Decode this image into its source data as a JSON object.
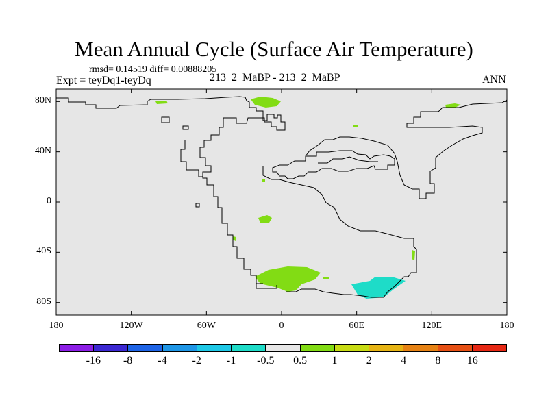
{
  "chart_data": {
    "type": "map",
    "title": "Mean Annual Cycle (Surface Air Temperature)",
    "stats_line": "rmsd= 0.14519 diff= 0.00888205",
    "expt_line": "Expt = teyDq1-teyDq",
    "center_label": "213_2_MaBP - 213_2_MaBP",
    "season_label": "ANN",
    "x_ticks": [
      "180",
      "120W",
      "60W",
      "0",
      "60E",
      "120E",
      "180"
    ],
    "x_tick_values": [
      -180,
      -120,
      -60,
      0,
      60,
      120,
      180
    ],
    "y_ticks": [
      "80N",
      "40N",
      "0",
      "40S",
      "80S"
    ],
    "y_tick_values": [
      80,
      40,
      0,
      -40,
      -80
    ],
    "xlim": [
      -180,
      180
    ],
    "ylim": [
      -90,
      90
    ],
    "colorbar": {
      "labels": [
        "-16",
        "-8",
        "-4",
        "-2",
        "-1",
        "-0.5",
        "0.5",
        "1",
        "2",
        "4",
        "8",
        "16"
      ],
      "colors": [
        "#8c1ee6",
        "#3c28d2",
        "#1e64e6",
        "#1e96e6",
        "#1ec8e6",
        "#1edcc8",
        "#e6e6e6",
        "#82dc14",
        "#c8dc14",
        "#e6b414",
        "#e68214",
        "#e65014",
        "#e62814"
      ]
    },
    "background_color": "#e6e6e6",
    "anomaly_regions": [
      {
        "bin": "0.5 to 1",
        "color": "#82dc14",
        "location": "northern high latitudes near 10W-0"
      },
      {
        "bin": "0.5 to 1",
        "color": "#82dc14",
        "location": "80N near 135E"
      },
      {
        "bin": "0.5 to 1",
        "color": "#82dc14",
        "location": "tropics near 10W"
      },
      {
        "bin": "0.5 to 1",
        "color": "#82dc14",
        "location": "southern high latitudes 20W-30E"
      },
      {
        "bin": "-1 to -0.5",
        "color": "#1edcc8",
        "location": "southern high latitudes 55E-85E"
      }
    ]
  }
}
